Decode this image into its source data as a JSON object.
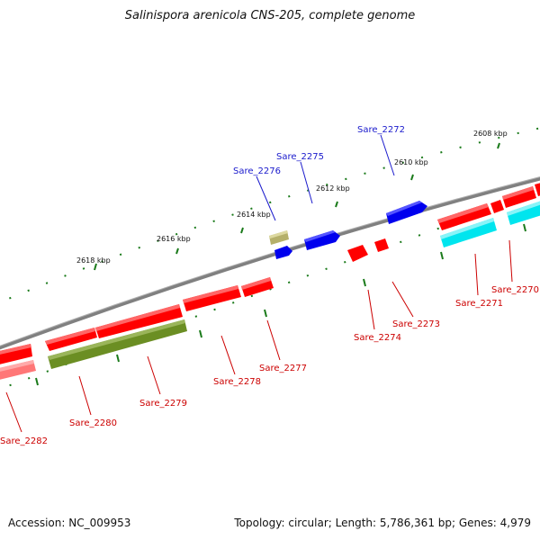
{
  "title": "Salinispora arenicola CNS-205, complete genome",
  "footer": {
    "accession": "Accession: NC_009953",
    "summary": "Topology: circular; Length: 5,786,361 bp; Genes: 4,979"
  },
  "kbp_labels": [
    "2608 kbp",
    "2610 kbp",
    "2612 kbp",
    "2614 kbp",
    "2616 kbp",
    "2618 kbp"
  ],
  "gene_labels_forward": [
    "Sare_2272",
    "Sare_2275",
    "Sare_2276"
  ],
  "gene_labels_reverse": [
    "Sare_2270",
    "Sare_2271",
    "Sare_2273",
    "Sare_2274",
    "Sare_2277",
    "Sare_2278",
    "Sare_2279",
    "Sare_2280",
    "Sare_2282"
  ],
  "colors": {
    "backbone": "#808080",
    "tick": "#1a7a1a",
    "forward_label": "#1a1acc",
    "reverse_label": "#cc0000",
    "gene_red": "#ff0000",
    "gene_pink": "#ff7777",
    "gene_blue": "#0000ee",
    "gene_olive": "#6b8e23",
    "gene_khaki": "#b5b06a",
    "gene_cyan": "#00e5ee"
  }
}
